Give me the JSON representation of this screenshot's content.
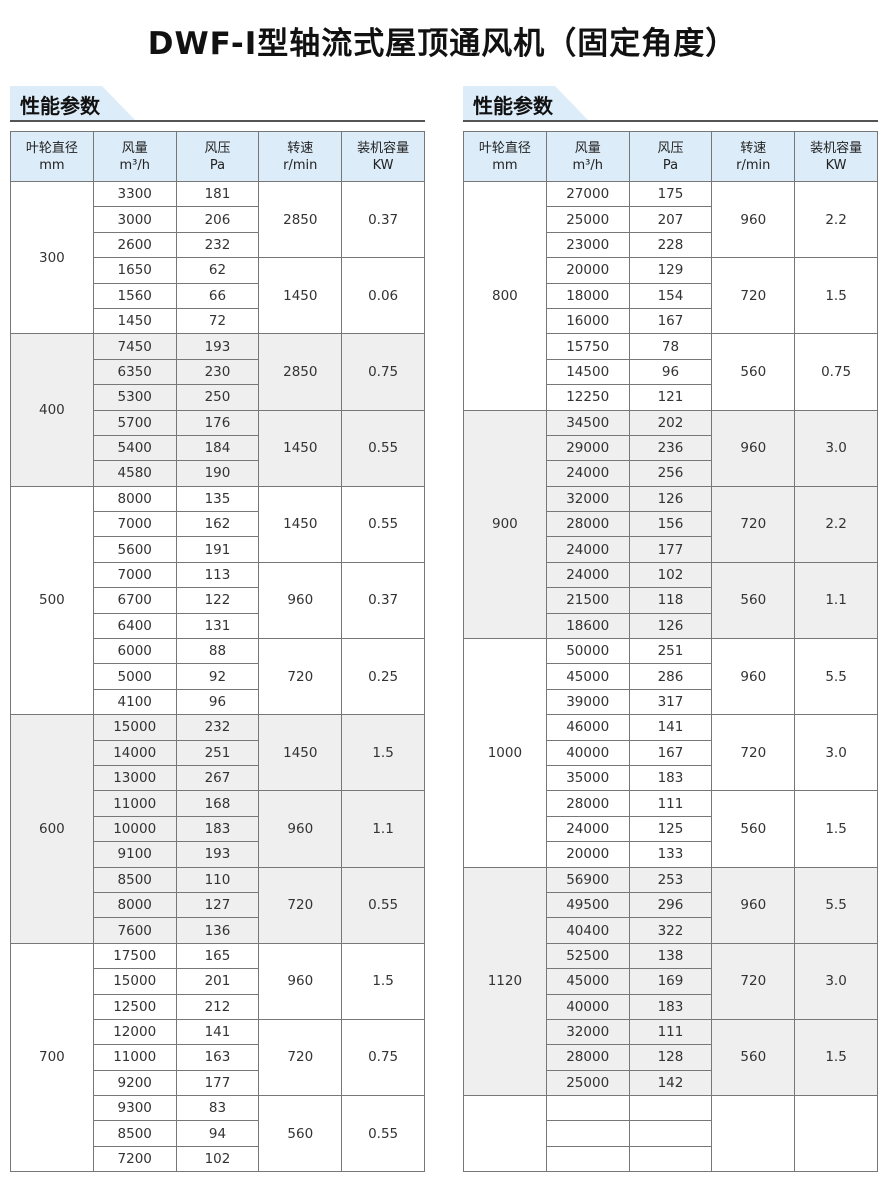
{
  "title": "DWF-Ⅰ型轴流式屋顶通风机（固定角度）",
  "section_label": "性能参数",
  "headers": [
    {
      "line1": "叶轮直径",
      "line2": "mm"
    },
    {
      "line1": "风量",
      "line2": "m³/h"
    },
    {
      "line1": "风压",
      "line2": "Pa"
    },
    {
      "line1": "转速",
      "line2": "r/min"
    },
    {
      "line1": "装机容量",
      "line2": "KW"
    }
  ],
  "shade_color": "#efefef",
  "header_color": "#dcecf8",
  "tables": [
    {
      "groups": [
        {
          "diameter": "300",
          "shaded": false,
          "subs": [
            {
              "speed": "2850",
              "power": "0.37",
              "rows": [
                [
                  "3300",
                  "181"
                ],
                [
                  "3000",
                  "206"
                ],
                [
                  "2600",
                  "232"
                ]
              ]
            },
            {
              "speed": "1450",
              "power": "0.06",
              "rows": [
                [
                  "1650",
                  "62"
                ],
                [
                  "1560",
                  "66"
                ],
                [
                  "1450",
                  "72"
                ]
              ]
            }
          ]
        },
        {
          "diameter": "400",
          "shaded": true,
          "subs": [
            {
              "speed": "2850",
              "power": "0.75",
              "rows": [
                [
                  "7450",
                  "193"
                ],
                [
                  "6350",
                  "230"
                ],
                [
                  "5300",
                  "250"
                ]
              ]
            },
            {
              "speed": "1450",
              "power": "0.55",
              "rows": [
                [
                  "5700",
                  "176"
                ],
                [
                  "5400",
                  "184"
                ],
                [
                  "4580",
                  "190"
                ]
              ]
            }
          ]
        },
        {
          "diameter": "500",
          "shaded": false,
          "subs": [
            {
              "speed": "1450",
              "power": "0.55",
              "rows": [
                [
                  "8000",
                  "135"
                ],
                [
                  "7000",
                  "162"
                ],
                [
                  "5600",
                  "191"
                ]
              ]
            },
            {
              "speed": "960",
              "power": "0.37",
              "rows": [
                [
                  "7000",
                  "113"
                ],
                [
                  "6700",
                  "122"
                ],
                [
                  "6400",
                  "131"
                ]
              ]
            },
            {
              "speed": "720",
              "power": "0.25",
              "rows": [
                [
                  "6000",
                  "88"
                ],
                [
                  "5000",
                  "92"
                ],
                [
                  "4100",
                  "96"
                ]
              ]
            }
          ]
        },
        {
          "diameter": "600",
          "shaded": true,
          "subs": [
            {
              "speed": "1450",
              "power": "1.5",
              "rows": [
                [
                  "15000",
                  "232"
                ],
                [
                  "14000",
                  "251"
                ],
                [
                  "13000",
                  "267"
                ]
              ]
            },
            {
              "speed": "960",
              "power": "1.1",
              "rows": [
                [
                  "11000",
                  "168"
                ],
                [
                  "10000",
                  "183"
                ],
                [
                  "9100",
                  "193"
                ]
              ]
            },
            {
              "speed": "720",
              "power": "0.55",
              "rows": [
                [
                  "8500",
                  "110"
                ],
                [
                  "8000",
                  "127"
                ],
                [
                  "7600",
                  "136"
                ]
              ]
            }
          ]
        },
        {
          "diameter": "700",
          "shaded": false,
          "subs": [
            {
              "speed": "960",
              "power": "1.5",
              "rows": [
                [
                  "17500",
                  "165"
                ],
                [
                  "15000",
                  "201"
                ],
                [
                  "12500",
                  "212"
                ]
              ]
            },
            {
              "speed": "720",
              "power": "0.75",
              "rows": [
                [
                  "12000",
                  "141"
                ],
                [
                  "11000",
                  "163"
                ],
                [
                  "9200",
                  "177"
                ]
              ]
            },
            {
              "speed": "560",
              "power": "0.55",
              "rows": [
                [
                  "9300",
                  "83"
                ],
                [
                  "8500",
                  "94"
                ],
                [
                  "7200",
                  "102"
                ]
              ]
            }
          ]
        }
      ]
    },
    {
      "groups": [
        {
          "diameter": "800",
          "shaded": false,
          "subs": [
            {
              "speed": "960",
              "power": "2.2",
              "rows": [
                [
                  "27000",
                  "175"
                ],
                [
                  "25000",
                  "207"
                ],
                [
                  "23000",
                  "228"
                ]
              ]
            },
            {
              "speed": "720",
              "power": "1.5",
              "rows": [
                [
                  "20000",
                  "129"
                ],
                [
                  "18000",
                  "154"
                ],
                [
                  "16000",
                  "167"
                ]
              ]
            },
            {
              "speed": "560",
              "power": "0.75",
              "rows": [
                [
                  "15750",
                  "78"
                ],
                [
                  "14500",
                  "96"
                ],
                [
                  "12250",
                  "121"
                ]
              ]
            }
          ]
        },
        {
          "diameter": "900",
          "shaded": true,
          "subs": [
            {
              "speed": "960",
              "power": "3.0",
              "rows": [
                [
                  "34500",
                  "202"
                ],
                [
                  "29000",
                  "236"
                ],
                [
                  "24000",
                  "256"
                ]
              ]
            },
            {
              "speed": "720",
              "power": "2.2",
              "rows": [
                [
                  "32000",
                  "126"
                ],
                [
                  "28000",
                  "156"
                ],
                [
                  "24000",
                  "177"
                ]
              ]
            },
            {
              "speed": "560",
              "power": "1.1",
              "rows": [
                [
                  "24000",
                  "102"
                ],
                [
                  "21500",
                  "118"
                ],
                [
                  "18600",
                  "126"
                ]
              ]
            }
          ]
        },
        {
          "diameter": "1000",
          "shaded": false,
          "subs": [
            {
              "speed": "960",
              "power": "5.5",
              "rows": [
                [
                  "50000",
                  "251"
                ],
                [
                  "45000",
                  "286"
                ],
                [
                  "39000",
                  "317"
                ]
              ]
            },
            {
              "speed": "720",
              "power": "3.0",
              "rows": [
                [
                  "46000",
                  "141"
                ],
                [
                  "40000",
                  "167"
                ],
                [
                  "35000",
                  "183"
                ]
              ]
            },
            {
              "speed": "560",
              "power": "1.5",
              "rows": [
                [
                  "28000",
                  "111"
                ],
                [
                  "24000",
                  "125"
                ],
                [
                  "20000",
                  "133"
                ]
              ]
            }
          ]
        },
        {
          "diameter": "1120",
          "shaded": true,
          "subs": [
            {
              "speed": "960",
              "power": "5.5",
              "rows": [
                [
                  "56900",
                  "253"
                ],
                [
                  "49500",
                  "296"
                ],
                [
                  "40400",
                  "322"
                ]
              ]
            },
            {
              "speed": "720",
              "power": "3.0",
              "rows": [
                [
                  "52500",
                  "138"
                ],
                [
                  "45000",
                  "169"
                ],
                [
                  "40000",
                  "183"
                ]
              ]
            },
            {
              "speed": "560",
              "power": "1.5",
              "rows": [
                [
                  "32000",
                  "111"
                ],
                [
                  "28000",
                  "128"
                ],
                [
                  "25000",
                  "142"
                ]
              ]
            }
          ]
        },
        {
          "diameter": "",
          "shaded": false,
          "subs": [
            {
              "speed": "",
              "power": "",
              "rows": [
                [
                  "",
                  ""
                ],
                [
                  "",
                  ""
                ],
                [
                  "",
                  ""
                ]
              ]
            }
          ]
        }
      ]
    }
  ]
}
